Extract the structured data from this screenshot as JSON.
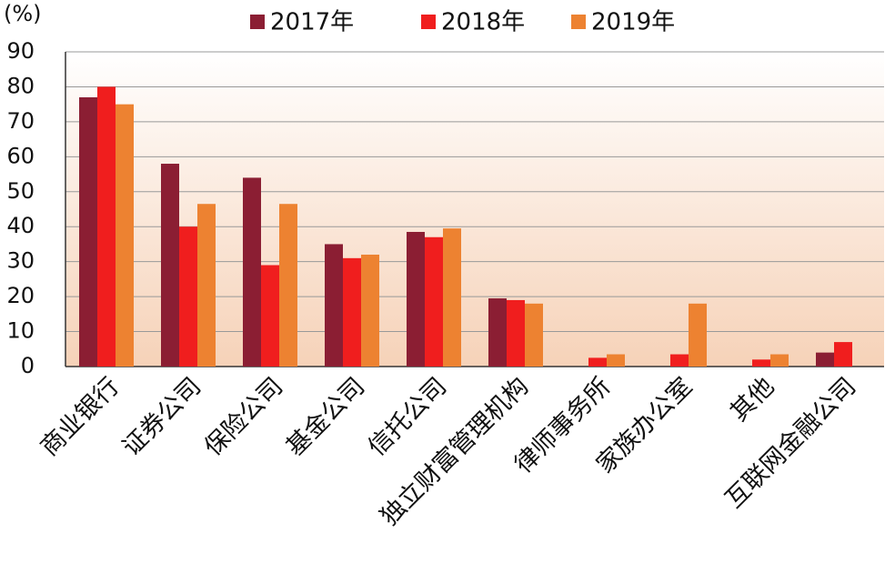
{
  "chart_data": {
    "type": "bar",
    "y_label": "(%)",
    "categories": [
      "商业银行",
      "证券公司",
      "保险公司",
      "基金公司",
      "信托公司",
      "独立财富管理机构",
      "律师事务所",
      "家族办公室",
      "其他",
      "互联网金融公司"
    ],
    "series": [
      {
        "name": "2017年",
        "color": "#8b1e33",
        "values": [
          77,
          58,
          54,
          35,
          38.5,
          19.5,
          null,
          null,
          null,
          4
        ]
      },
      {
        "name": "2018年",
        "color": "#f01e1e",
        "values": [
          80,
          40,
          29,
          31,
          37,
          19,
          2.5,
          3.5,
          2,
          7
        ]
      },
      {
        "name": "2019年",
        "color": "#ed8231",
        "values": [
          75,
          46.5,
          46.5,
          32,
          39.5,
          18,
          3.5,
          18,
          3.5,
          null
        ]
      }
    ],
    "ylim": [
      0,
      90
    ],
    "yticks": [
      0,
      10,
      20,
      30,
      40,
      50,
      60,
      70,
      80,
      90
    ],
    "grid": true
  }
}
